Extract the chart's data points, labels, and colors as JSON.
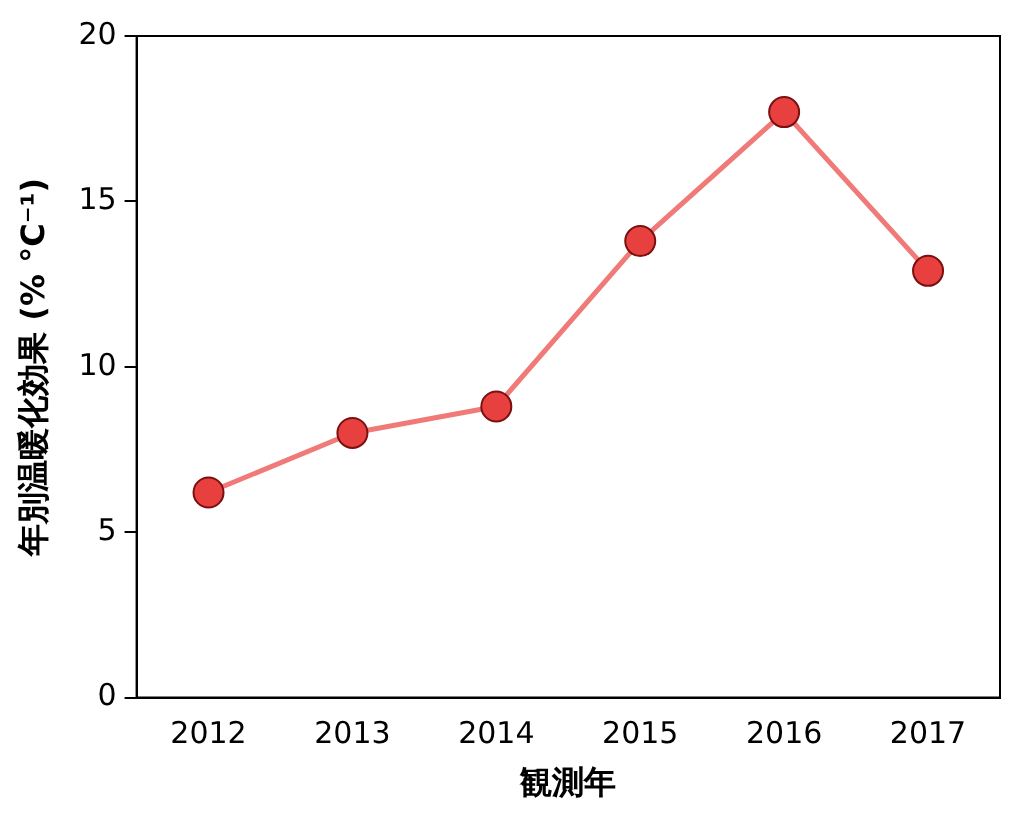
{
  "chart_data": {
    "type": "line",
    "xlabel": "観測年",
    "ylabel": "年別温暖化効果 (% °C⁻¹)",
    "categories": [
      "2012",
      "2013",
      "2014",
      "2015",
      "2016",
      "2017"
    ],
    "series": [
      {
        "color": "#f07a78",
        "values": [
          6.2,
          8.0,
          8.8,
          13.8,
          17.7,
          12.9
        ]
      }
    ],
    "ylim": [
      0,
      20
    ],
    "yticks": [
      0,
      5,
      10,
      15,
      20
    ],
    "grid": false,
    "legend": false,
    "marker": "circle",
    "line_style": "solid"
  }
}
